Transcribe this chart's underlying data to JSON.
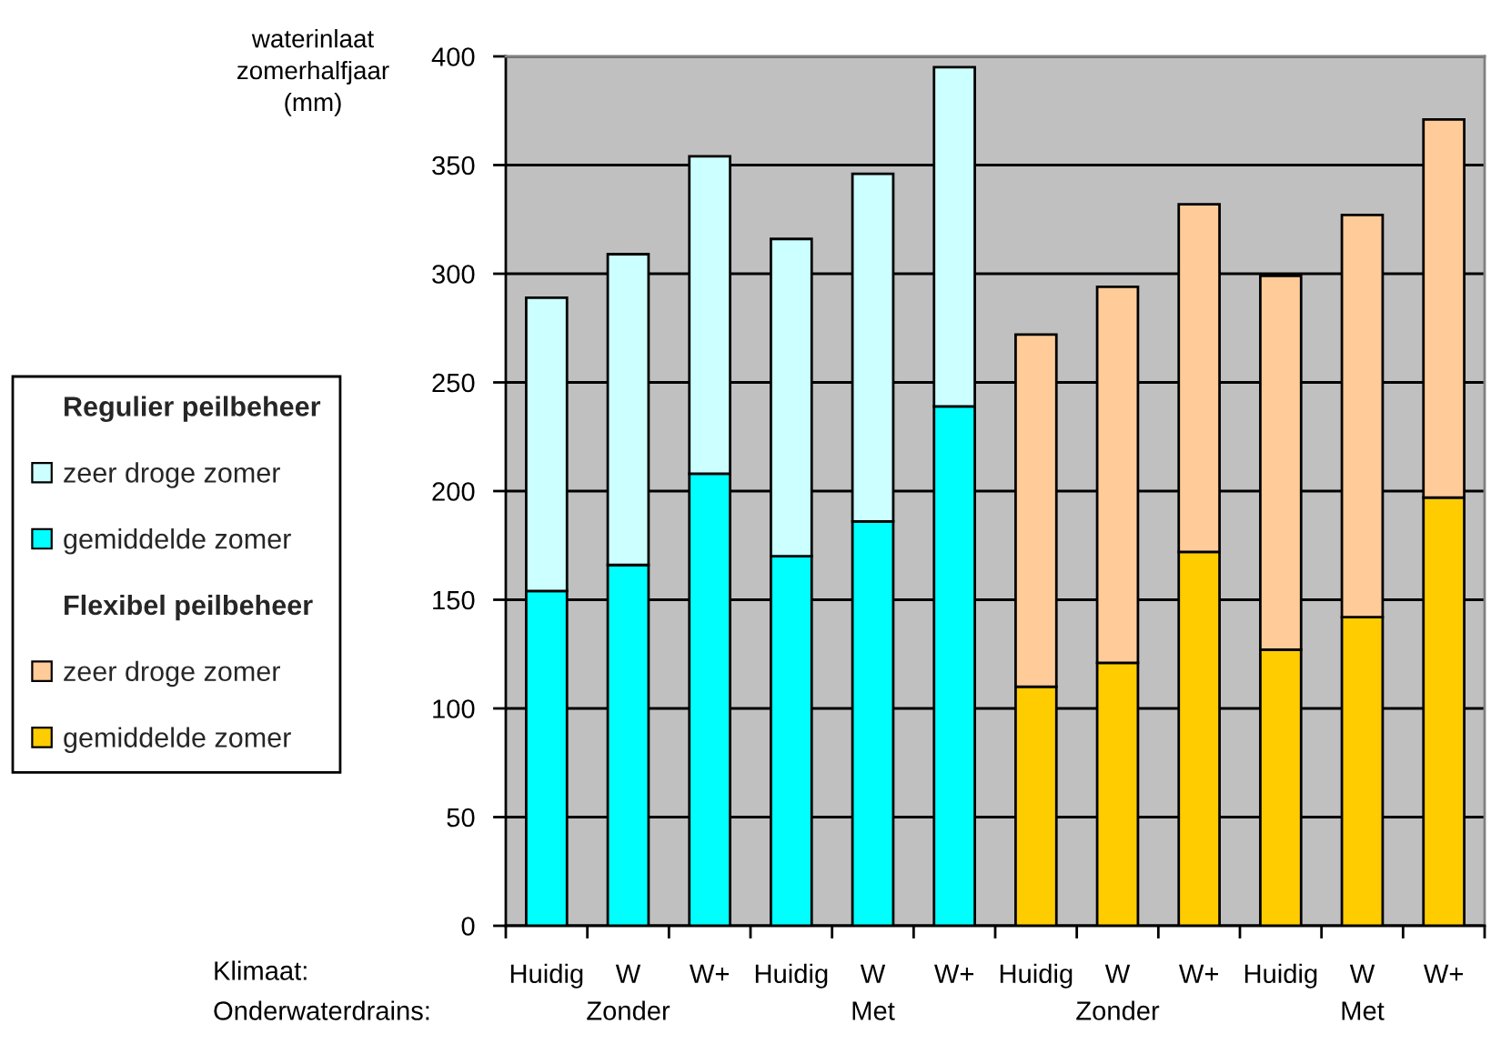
{
  "chart_data": {
    "type": "bar",
    "stacked": true,
    "categories": [
      "Huidig",
      "W",
      "W+",
      "Huidig",
      "W",
      "W+",
      "Huidig",
      "W",
      "W+",
      "Huidig",
      "W",
      "W+"
    ],
    "series": [
      {
        "name": "gemiddelde zomer",
        "color": "#00ffff",
        "values": [
          154,
          166,
          208,
          170,
          186,
          239,
          null,
          null,
          null,
          null,
          null,
          null
        ]
      },
      {
        "name": "zeer droge zomer",
        "color": "#ccffff",
        "values": [
          135,
          143,
          146,
          146,
          160,
          156,
          null,
          null,
          null,
          null,
          null,
          null
        ]
      },
      {
        "name": "gemiddelde zomer",
        "color": "#ffcc00",
        "values": [
          null,
          null,
          null,
          null,
          null,
          null,
          110,
          121,
          172,
          127,
          142,
          197
        ]
      },
      {
        "name": "zeer droge zomer",
        "color": "#ffcc99",
        "values": [
          null,
          null,
          null,
          null,
          null,
          null,
          162,
          173,
          160,
          172,
          185,
          174
        ]
      }
    ],
    "ylabel": "waterinlaat zomerhalfjaar (mm)",
    "ylim": [
      0,
      400
    ],
    "yticks": [
      0,
      50,
      100,
      150,
      200,
      250,
      300,
      350,
      400
    ],
    "grid": "y",
    "legend": "left",
    "annotations": [
      "Klimaat:",
      "Onderwaterdrains:",
      "Zonder",
      "Met",
      "Zonder",
      "Met",
      "Regulier peilbeheer",
      "Flexibel peilbeheer"
    ]
  }
}
